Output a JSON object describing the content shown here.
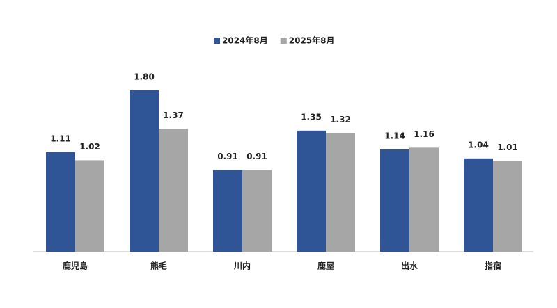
{
  "chart_data": {
    "type": "bar",
    "categories": [
      "鹿児島",
      "熊毛",
      "川内",
      "鹿屋",
      "出水",
      "指宿"
    ],
    "series": [
      {
        "name": "2024年8月",
        "color": "#2f5597",
        "values": [
          1.11,
          1.8,
          0.91,
          1.35,
          1.14,
          1.04
        ],
        "value_labels": [
          "1.11",
          "1.80",
          "0.91",
          "1.35",
          "1.14",
          "1.04"
        ]
      },
      {
        "name": "2025年8月",
        "color": "#a6a6a6",
        "values": [
          1.02,
          1.37,
          0.91,
          1.32,
          1.16,
          1.01
        ],
        "value_labels": [
          "1.02",
          "1.37",
          "0.91",
          "1.32",
          "1.16",
          "1.01"
        ]
      }
    ],
    "ylim": [
      0,
      2
    ],
    "legend": "top"
  }
}
